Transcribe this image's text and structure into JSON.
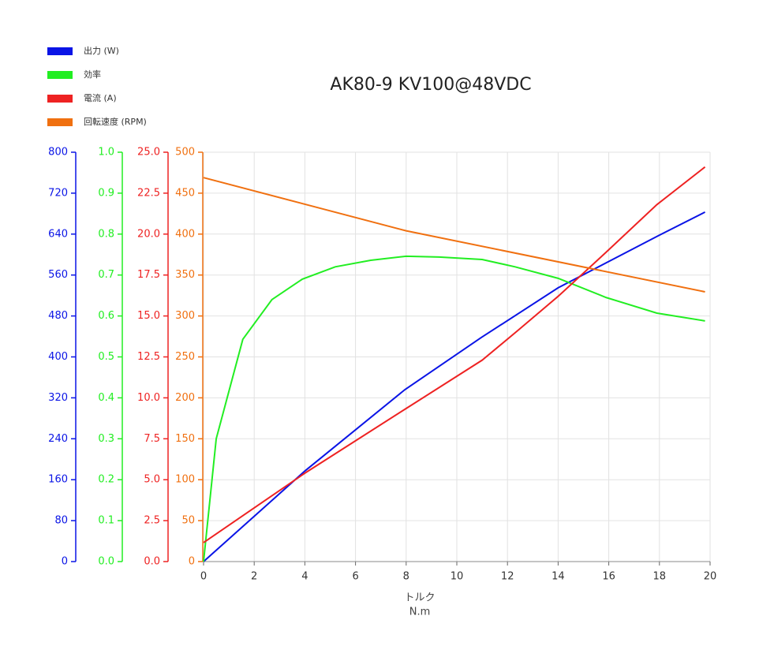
{
  "chart_data": {
    "type": "line",
    "title": "AK80-9 KV100@48VDC",
    "xlabel": "トルク",
    "xunit": "N.m",
    "xlim": [
      0,
      20
    ],
    "xticks": [
      0,
      2,
      4,
      6,
      8,
      10,
      12,
      14,
      16,
      18,
      20
    ],
    "ylim": [
      0,
      800
    ],
    "yticks": [
      0,
      80,
      160,
      240,
      320,
      400,
      480,
      560,
      640,
      720,
      800
    ],
    "y2lim": [
      0,
      1
    ],
    "y2ticks": [
      {
        "value": 0,
        "label": "0.0"
      },
      0.1,
      0.2,
      0.3,
      0.4,
      0.5,
      0.6,
      0.7,
      0.8,
      0.9,
      {
        "value": 1,
        "label": "1.0"
      }
    ],
    "y3lim": [
      0,
      25
    ],
    "y3ticks": [
      {
        "value": 0,
        "label": "0.0"
      },
      2.5,
      {
        "value": 5,
        "label": "5.0"
      },
      7.5,
      {
        "value": 10,
        "label": "10.0"
      },
      12.5,
      {
        "value": 15,
        "label": "15.0"
      },
      17.5,
      {
        "value": 20,
        "label": "20.0"
      },
      22.5,
      {
        "value": 25,
        "label": "25.0"
      }
    ],
    "y4lim": [
      0,
      500
    ],
    "y4ticks": [
      0,
      50,
      100,
      150,
      200,
      250,
      300,
      350,
      400,
      450,
      500
    ],
    "grid": true,
    "legend": "top-left",
    "series": [
      {
        "name": "出力 (W)",
        "color": "#0a14e6",
        "axis": "y",
        "x": [
          0,
          4,
          7.95,
          10.97,
          14,
          18,
          19.8
        ],
        "values": [
          0,
          177,
          336,
          438,
          535,
          638,
          683
        ]
      },
      {
        "name": "効率",
        "color": "#22ee22",
        "axis": "y2",
        "x": [
          0,
          0.5,
          1.55,
          2.7,
          3.9,
          5.2,
          6.6,
          8,
          9.3,
          11,
          12.3,
          14,
          15.9,
          17.9,
          19.8
        ],
        "values": [
          0,
          0.3,
          0.543,
          0.64,
          0.69,
          0.72,
          0.736,
          0.746,
          0.744,
          0.738,
          0.72,
          0.692,
          0.645,
          0.607,
          0.588
        ]
      },
      {
        "name": "電流 (A)",
        "color": "#ee2222",
        "axis": "y3",
        "x": [
          0,
          4,
          8,
          11,
          12.4,
          14,
          15.9,
          17.9,
          19.8
        ],
        "values": [
          1.16,
          5.4,
          9.35,
          12.3,
          14.1,
          16.2,
          18.9,
          21.8,
          24.1
        ]
      },
      {
        "name": "回転速度 (RPM)",
        "color": "#f07010",
        "axis": "y4",
        "x": [
          0,
          8,
          19.8
        ],
        "values": [
          469,
          404,
          329.5
        ]
      }
    ]
  }
}
